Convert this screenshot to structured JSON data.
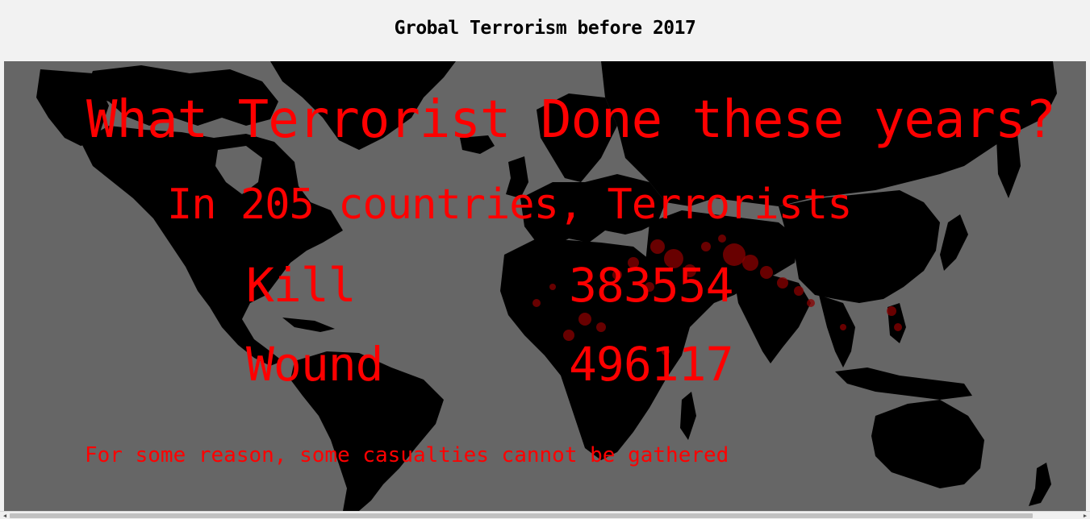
{
  "page": {
    "title": "Grobal Terrorism before 2017"
  },
  "overlay": {
    "headline": "What Terrorist Done these years?",
    "subheadline": "In 205 countries, Terrorists",
    "kill_label": "Kill",
    "kill_value": "383554",
    "wound_label": "Wound",
    "wound_value": "496117",
    "footnote": "For some reason, some casualties cannot be gathered"
  },
  "colors": {
    "ocean": "#666666",
    "land": "#000000",
    "text_accent": "#ff0000",
    "incident_markers": "#8b0000"
  },
  "scrollbar": {
    "left_arrow_icon": "chevron-left-icon",
    "right_arrow_icon": "chevron-right-icon"
  }
}
